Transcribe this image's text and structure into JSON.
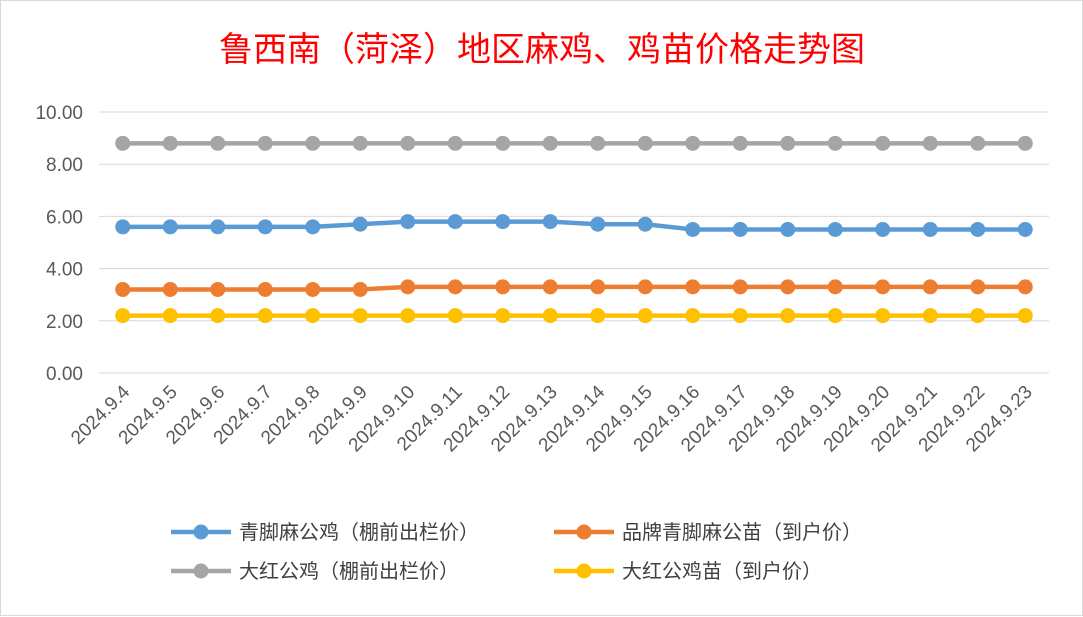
{
  "chart_data": {
    "type": "line",
    "title": "鲁西南（菏泽）地区麻鸡、鸡苗价格走势图",
    "categories": [
      "2024.9.4",
      "2024.9.5",
      "2024.9.6",
      "2024.9.7",
      "2024.9.8",
      "2024.9.9",
      "2024.9.10",
      "2024.9.11",
      "2024.9.12",
      "2024.9.13",
      "2024.9.14",
      "2024.9.15",
      "2024.9.16",
      "2024.9.17",
      "2024.9.18",
      "2024.9.19",
      "2024.9.20",
      "2024.9.21",
      "2024.9.22",
      "2024.9.23"
    ],
    "ylim": [
      0,
      10
    ],
    "yticks": [
      "0.00",
      "2.00",
      "4.00",
      "6.00",
      "8.00",
      "10.00"
    ],
    "grid": true,
    "legend_position": "bottom",
    "series": [
      {
        "name": "青脚麻公鸡（棚前出栏价）",
        "color": "#5b9bd5",
        "values": [
          5.6,
          5.6,
          5.6,
          5.6,
          5.6,
          5.7,
          5.8,
          5.8,
          5.8,
          5.8,
          5.7,
          5.7,
          5.5,
          5.5,
          5.5,
          5.5,
          5.5,
          5.5,
          5.5,
          5.5
        ]
      },
      {
        "name": "品牌青脚麻公苗（到户价）",
        "color": "#ed7d31",
        "values": [
          3.2,
          3.2,
          3.2,
          3.2,
          3.2,
          3.2,
          3.3,
          3.3,
          3.3,
          3.3,
          3.3,
          3.3,
          3.3,
          3.3,
          3.3,
          3.3,
          3.3,
          3.3,
          3.3,
          3.3
        ]
      },
      {
        "name": "大红公鸡（棚前出栏价）",
        "color": "#a5a5a5",
        "values": [
          8.8,
          8.8,
          8.8,
          8.8,
          8.8,
          8.8,
          8.8,
          8.8,
          8.8,
          8.8,
          8.8,
          8.8,
          8.8,
          8.8,
          8.8,
          8.8,
          8.8,
          8.8,
          8.8,
          8.8
        ]
      },
      {
        "name": "大红公鸡苗（到户价）",
        "color": "#ffc000",
        "values": [
          2.2,
          2.2,
          2.2,
          2.2,
          2.2,
          2.2,
          2.2,
          2.2,
          2.2,
          2.2,
          2.2,
          2.2,
          2.2,
          2.2,
          2.2,
          2.2,
          2.2,
          2.2,
          2.2,
          2.2
        ]
      }
    ]
  }
}
